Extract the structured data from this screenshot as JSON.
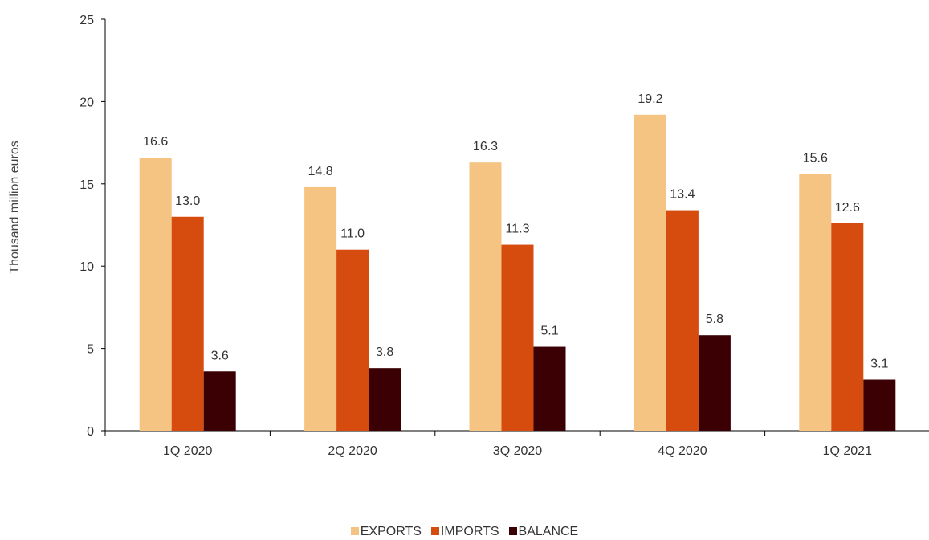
{
  "chart_data": {
    "type": "bar",
    "title": "",
    "xlabel": "",
    "ylabel": "Thousand million euros",
    "ylim": [
      0,
      25
    ],
    "yticks": [
      0,
      5,
      10,
      15,
      20,
      25
    ],
    "grid": false,
    "legend_position": "bottom",
    "categories": [
      "1Q 2020",
      "2Q 2020",
      "3Q 2020",
      "4Q 2020",
      "1Q 2021"
    ],
    "series": [
      {
        "name": "EXPORTS",
        "color": "#F5C483",
        "values": [
          16.6,
          14.8,
          16.3,
          19.2,
          15.6
        ],
        "labels": [
          "16.6",
          "14.8",
          "16.3",
          "19.2",
          "15.6"
        ]
      },
      {
        "name": "IMPORTS",
        "color": "#D64B0E",
        "values": [
          13.0,
          11.0,
          11.3,
          13.4,
          12.6
        ],
        "labels": [
          "13.0",
          "11.0",
          "11.3",
          "13.4",
          "12.6"
        ]
      },
      {
        "name": "BALANCE",
        "color": "#3A0003",
        "values": [
          3.6,
          3.8,
          5.1,
          5.8,
          3.1
        ],
        "labels": [
          "3.6",
          "3.8",
          "5.1",
          "5.8",
          "3.1"
        ]
      }
    ]
  }
}
